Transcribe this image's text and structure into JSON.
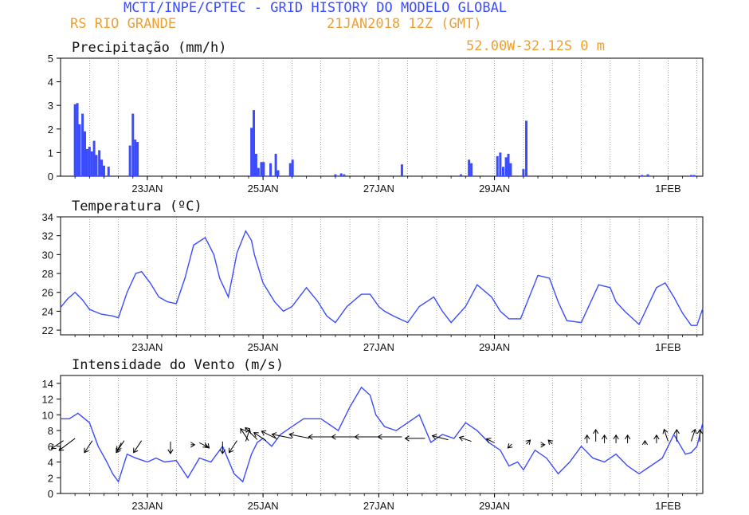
{
  "header": {
    "title": "MCTI/INPE/CPTEC - GRID HISTORY DO MODELO GLOBAL",
    "location": "RS RIO GRANDE",
    "run": "21JAN2018 12Z (GMT)",
    "coords": "52.00W-32.12S   0 m"
  },
  "colors": {
    "title": "#3b4cff",
    "meta": "#f0a030",
    "series": "#3b4cff",
    "arrow": "#000000"
  },
  "chart_data": [
    {
      "type": "bar",
      "title": "Precipitação (mm/h)",
      "x_unit": "days since 21JAN2018 12Z",
      "ylim": [
        0,
        5
      ],
      "yticks": [
        0,
        1,
        2,
        3,
        4,
        5
      ],
      "xticks": [
        {
          "label": "23JAN",
          "x": 1.5
        },
        {
          "label": "25JAN",
          "x": 3.5
        },
        {
          "label": "27JAN",
          "x": 5.5
        },
        {
          "label": "29JAN",
          "x": 7.5
        },
        {
          "label": "1FEB",
          "x": 10.5
        }
      ],
      "xlim": [
        0,
        11.1
      ],
      "bars": [
        [
          0.25,
          3.05
        ],
        [
          0.29,
          3.1
        ],
        [
          0.33,
          2.2
        ],
        [
          0.38,
          2.65
        ],
        [
          0.42,
          1.9
        ],
        [
          0.46,
          1.15
        ],
        [
          0.5,
          1.25
        ],
        [
          0.54,
          1.05
        ],
        [
          0.58,
          1.5
        ],
        [
          0.62,
          0.9
        ],
        [
          0.67,
          1.1
        ],
        [
          0.71,
          0.7
        ],
        [
          0.75,
          0.45
        ],
        [
          0.83,
          0.4
        ],
        [
          1.2,
          1.3
        ],
        [
          1.25,
          2.65
        ],
        [
          1.29,
          1.55
        ],
        [
          1.33,
          1.45
        ],
        [
          3.3,
          2.05
        ],
        [
          3.34,
          2.8
        ],
        [
          3.38,
          0.95
        ],
        [
          3.42,
          0.35
        ],
        [
          3.47,
          0.6
        ],
        [
          3.51,
          0.6
        ],
        [
          3.63,
          0.55
        ],
        [
          3.72,
          0.95
        ],
        [
          3.76,
          0.25
        ],
        [
          3.97,
          0.55
        ],
        [
          4.01,
          0.7
        ],
        [
          4.75,
          0.08
        ],
        [
          4.85,
          0.12
        ],
        [
          4.9,
          0.08
        ],
        [
          5.9,
          0.5
        ],
        [
          6.92,
          0.08
        ],
        [
          7.06,
          0.7
        ],
        [
          7.1,
          0.55
        ],
        [
          7.55,
          0.85
        ],
        [
          7.6,
          1.0
        ],
        [
          7.65,
          0.4
        ],
        [
          7.7,
          0.8
        ],
        [
          7.74,
          0.95
        ],
        [
          7.78,
          0.55
        ],
        [
          8.0,
          0.3
        ],
        [
          8.05,
          2.35
        ],
        [
          10.05,
          0.05
        ],
        [
          10.15,
          0.08
        ],
        [
          10.9,
          0.05
        ],
        [
          10.95,
          0.05
        ]
      ]
    },
    {
      "type": "line",
      "title": "Temperatura (ºC)",
      "x_unit": "days since 21JAN2018 12Z",
      "ylim": [
        21.5,
        34
      ],
      "yticks": [
        22,
        24,
        26,
        28,
        30,
        32,
        34
      ],
      "xticks": [
        {
          "label": "23JAN",
          "x": 1.5
        },
        {
          "label": "25JAN",
          "x": 3.5
        },
        {
          "label": "27JAN",
          "x": 5.5
        },
        {
          "label": "29JAN",
          "x": 7.5
        },
        {
          "label": "1FEB",
          "x": 10.5
        }
      ],
      "xlim": [
        0,
        11.1
      ],
      "x": [
        0,
        0.12,
        0.25,
        0.38,
        0.5,
        0.7,
        0.9,
        1.0,
        1.15,
        1.3,
        1.4,
        1.55,
        1.7,
        1.85,
        2.0,
        2.15,
        2.3,
        2.5,
        2.65,
        2.75,
        2.9,
        3.05,
        3.2,
        3.3,
        3.35,
        3.5,
        3.6,
        3.7,
        3.85,
        4.0,
        4.25,
        4.45,
        4.6,
        4.75,
        4.95,
        5.2,
        5.35,
        5.5,
        5.6,
        5.75,
        6.0,
        6.2,
        6.45,
        6.6,
        6.75,
        7.0,
        7.2,
        7.45,
        7.6,
        7.75,
        7.95,
        8.25,
        8.45,
        8.6,
        8.75,
        9.0,
        9.3,
        9.5,
        9.6,
        9.75,
        10.0,
        10.3,
        10.45,
        10.6,
        10.75,
        10.9,
        11.0,
        11.1
      ],
      "y": [
        24.4,
        25.3,
        26.0,
        25.2,
        24.2,
        23.7,
        23.5,
        23.3,
        26.0,
        28.0,
        28.2,
        27.0,
        25.5,
        25.0,
        24.8,
        27.5,
        31.0,
        31.8,
        30.0,
        27.5,
        25.5,
        30.2,
        32.5,
        31.5,
        30.0,
        27.0,
        26.0,
        25.0,
        24.0,
        24.5,
        26.5,
        25.0,
        23.5,
        22.8,
        24.5,
        25.8,
        25.8,
        24.5,
        24.0,
        23.5,
        22.8,
        24.5,
        25.5,
        24.0,
        22.8,
        24.5,
        26.8,
        25.5,
        24.0,
        23.2,
        23.2,
        27.8,
        27.5,
        25.0,
        23.0,
        22.8,
        26.8,
        26.5,
        25.0,
        24.0,
        22.6,
        26.5,
        27.0,
        25.5,
        23.8,
        22.5,
        22.5,
        24.3
      ]
    },
    {
      "type": "line",
      "title": "Intensidade do Vento (m/s)",
      "x_unit": "days since 21JAN2018 12Z",
      "ylim": [
        0,
        15
      ],
      "yticks": [
        0,
        2,
        4,
        6,
        8,
        10,
        12,
        14
      ],
      "xticks": [
        {
          "label": "23JAN",
          "x": 1.5
        },
        {
          "label": "25JAN",
          "x": 3.5
        },
        {
          "label": "27JAN",
          "x": 5.5
        },
        {
          "label": "29JAN",
          "x": 7.5
        },
        {
          "label": "1FEB",
          "x": 10.5
        }
      ],
      "xlim": [
        0,
        11.1
      ],
      "x": [
        0,
        0.15,
        0.3,
        0.5,
        0.65,
        0.8,
        0.9,
        1.0,
        1.15,
        1.3,
        1.5,
        1.65,
        1.8,
        2.0,
        2.2,
        2.4,
        2.6,
        2.8,
        3.0,
        3.15,
        3.3,
        3.4,
        3.5,
        3.65,
        3.8,
        4.0,
        4.2,
        4.5,
        4.8,
        5.0,
        5.2,
        5.35,
        5.45,
        5.6,
        5.8,
        6.0,
        6.2,
        6.4,
        6.6,
        6.8,
        7.0,
        7.2,
        7.4,
        7.6,
        7.75,
        7.9,
        8.0,
        8.2,
        8.4,
        8.6,
        8.8,
        9.0,
        9.2,
        9.4,
        9.6,
        9.8,
        10.0,
        10.2,
        10.4,
        10.6,
        10.8,
        10.9,
        11.0,
        11.1
      ],
      "y": [
        9.5,
        9.5,
        10.2,
        9.0,
        6.0,
        4.0,
        2.5,
        1.5,
        5.0,
        4.5,
        4.0,
        4.5,
        4.0,
        4.2,
        2.0,
        4.5,
        4.0,
        6.0,
        2.5,
        1.5,
        5.0,
        6.5,
        7.0,
        6.0,
        7.5,
        8.5,
        9.5,
        9.5,
        8.0,
        11.0,
        13.5,
        12.5,
        10.0,
        8.5,
        8.0,
        9.0,
        10.0,
        6.5,
        7.5,
        7.0,
        9.0,
        8.0,
        6.5,
        5.5,
        3.5,
        4.0,
        3.0,
        5.5,
        4.5,
        2.5,
        4.0,
        6.0,
        4.5,
        4.0,
        5.0,
        3.5,
        2.5,
        3.5,
        4.5,
        7.5,
        5.0,
        5.2,
        6.0,
        9.0
      ],
      "wind_vectors_uv": [
        [
          0.05,
          -3,
          -2
        ],
        [
          0.25,
          -4,
          -3
        ],
        [
          0.55,
          -2,
          -3
        ],
        [
          1.05,
          -1,
          -2
        ],
        [
          1.1,
          -2,
          -3
        ],
        [
          1.4,
          -2,
          -3
        ],
        [
          1.9,
          0,
          -3
        ],
        [
          2.25,
          1,
          0
        ],
        [
          2.4,
          2,
          -1
        ],
        [
          2.5,
          1,
          -1
        ],
        [
          2.8,
          0,
          -3
        ],
        [
          3.05,
          -2,
          -3
        ],
        [
          3.2,
          1,
          3
        ],
        [
          3.25,
          -2,
          3
        ],
        [
          3.4,
          -3,
          3
        ],
        [
          3.55,
          -3,
          2
        ],
        [
          3.75,
          -4,
          2
        ],
        [
          4.0,
          -5,
          1
        ],
        [
          4.3,
          -5,
          1
        ],
        [
          4.7,
          -6,
          0
        ],
        [
          5.1,
          -6,
          0
        ],
        [
          5.5,
          -6,
          0
        ],
        [
          5.9,
          -6,
          0
        ],
        [
          6.3,
          -5,
          0
        ],
        [
          6.7,
          -4,
          1
        ],
        [
          7.1,
          -3,
          1
        ],
        [
          7.5,
          -2,
          1
        ],
        [
          7.8,
          -1,
          -1
        ],
        [
          8.05,
          1,
          1
        ],
        [
          8.3,
          1,
          0
        ],
        [
          8.5,
          -1,
          1
        ],
        [
          9.1,
          0,
          2
        ],
        [
          9.25,
          0,
          3
        ],
        [
          9.4,
          0,
          2
        ],
        [
          9.6,
          0,
          2
        ],
        [
          9.8,
          0,
          2
        ],
        [
          10.1,
          0,
          1
        ],
        [
          10.3,
          0,
          2
        ],
        [
          10.5,
          -1,
          3
        ],
        [
          10.65,
          0,
          3
        ],
        [
          10.9,
          1,
          3
        ],
        [
          11.05,
          0,
          3
        ]
      ]
    }
  ]
}
